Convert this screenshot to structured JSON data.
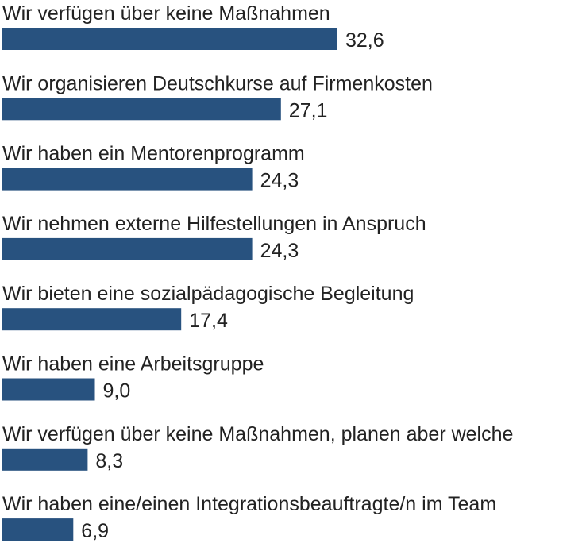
{
  "chart_data": {
    "type": "bar",
    "orientation": "horizontal",
    "categories": [
      "Wir verfügen über keine Maßnahmen",
      "Wir organisieren Deutschkurse auf Firmenkosten",
      "Wir haben ein Mentorenprogramm",
      "Wir nehmen externe Hilfestellungen in Anspruch",
      "Wir bieten eine sozialpädagogische Begleitung",
      "Wir haben eine Arbeitsgruppe",
      "Wir verfügen über keine Maßnahmen, planen aber welche",
      "Wir haben eine/einen Integrationsbeauftragte/n im Team"
    ],
    "values": [
      32.6,
      27.1,
      24.3,
      24.3,
      17.4,
      9.0,
      8.3,
      6.9
    ],
    "value_labels": [
      "32,6",
      "27,1",
      "24,3",
      "24,3",
      "17,4",
      "9,0",
      "8,3",
      "6,9"
    ],
    "title": "",
    "xlabel": "",
    "ylabel": "",
    "xlim": [
      0,
      32.6
    ],
    "grid": false,
    "legend": "none",
    "colors": {
      "bar": "#28527f",
      "text": "#222222",
      "background": "#ffffff"
    }
  }
}
